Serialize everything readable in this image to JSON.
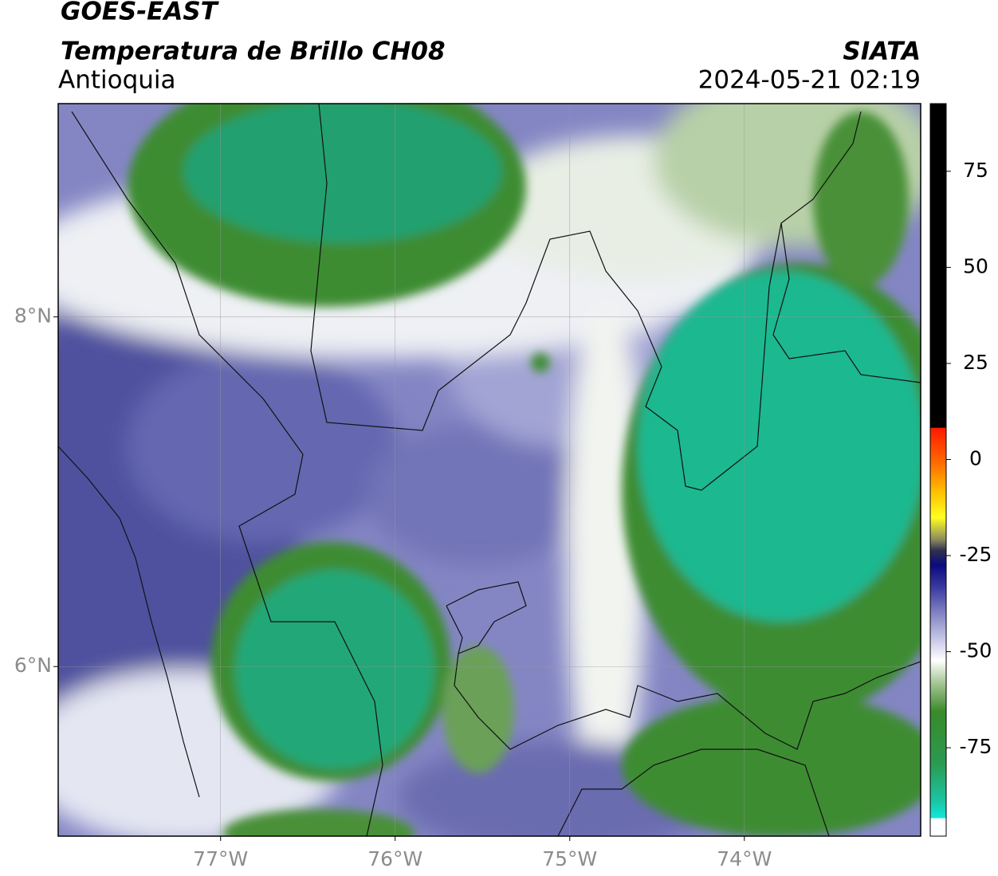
{
  "header": {
    "title": "GOES-EAST",
    "subtitle": "Temperatura de Brillo CH08",
    "region": "Antioquia",
    "source": "SIATA",
    "datetime": "2024-05-21 02:19"
  },
  "map": {
    "xlim": [
      -77.93,
      -72.99
    ],
    "ylim": [
      5.03,
      9.22
    ],
    "xticks": [
      {
        "value": -77,
        "label": "77°W"
      },
      {
        "value": -76,
        "label": "76°W"
      },
      {
        "value": -75,
        "label": "75°W"
      },
      {
        "value": -74,
        "label": "74°W"
      }
    ],
    "yticks": [
      {
        "value": 8,
        "label": "8°N"
      },
      {
        "value": 6,
        "label": "6°N"
      }
    ],
    "grid": true
  },
  "colorbar": {
    "lim": [
      -98,
      92.6
    ],
    "ticks": [
      75,
      50,
      25,
      0,
      -25,
      -50,
      -75
    ]
  }
}
